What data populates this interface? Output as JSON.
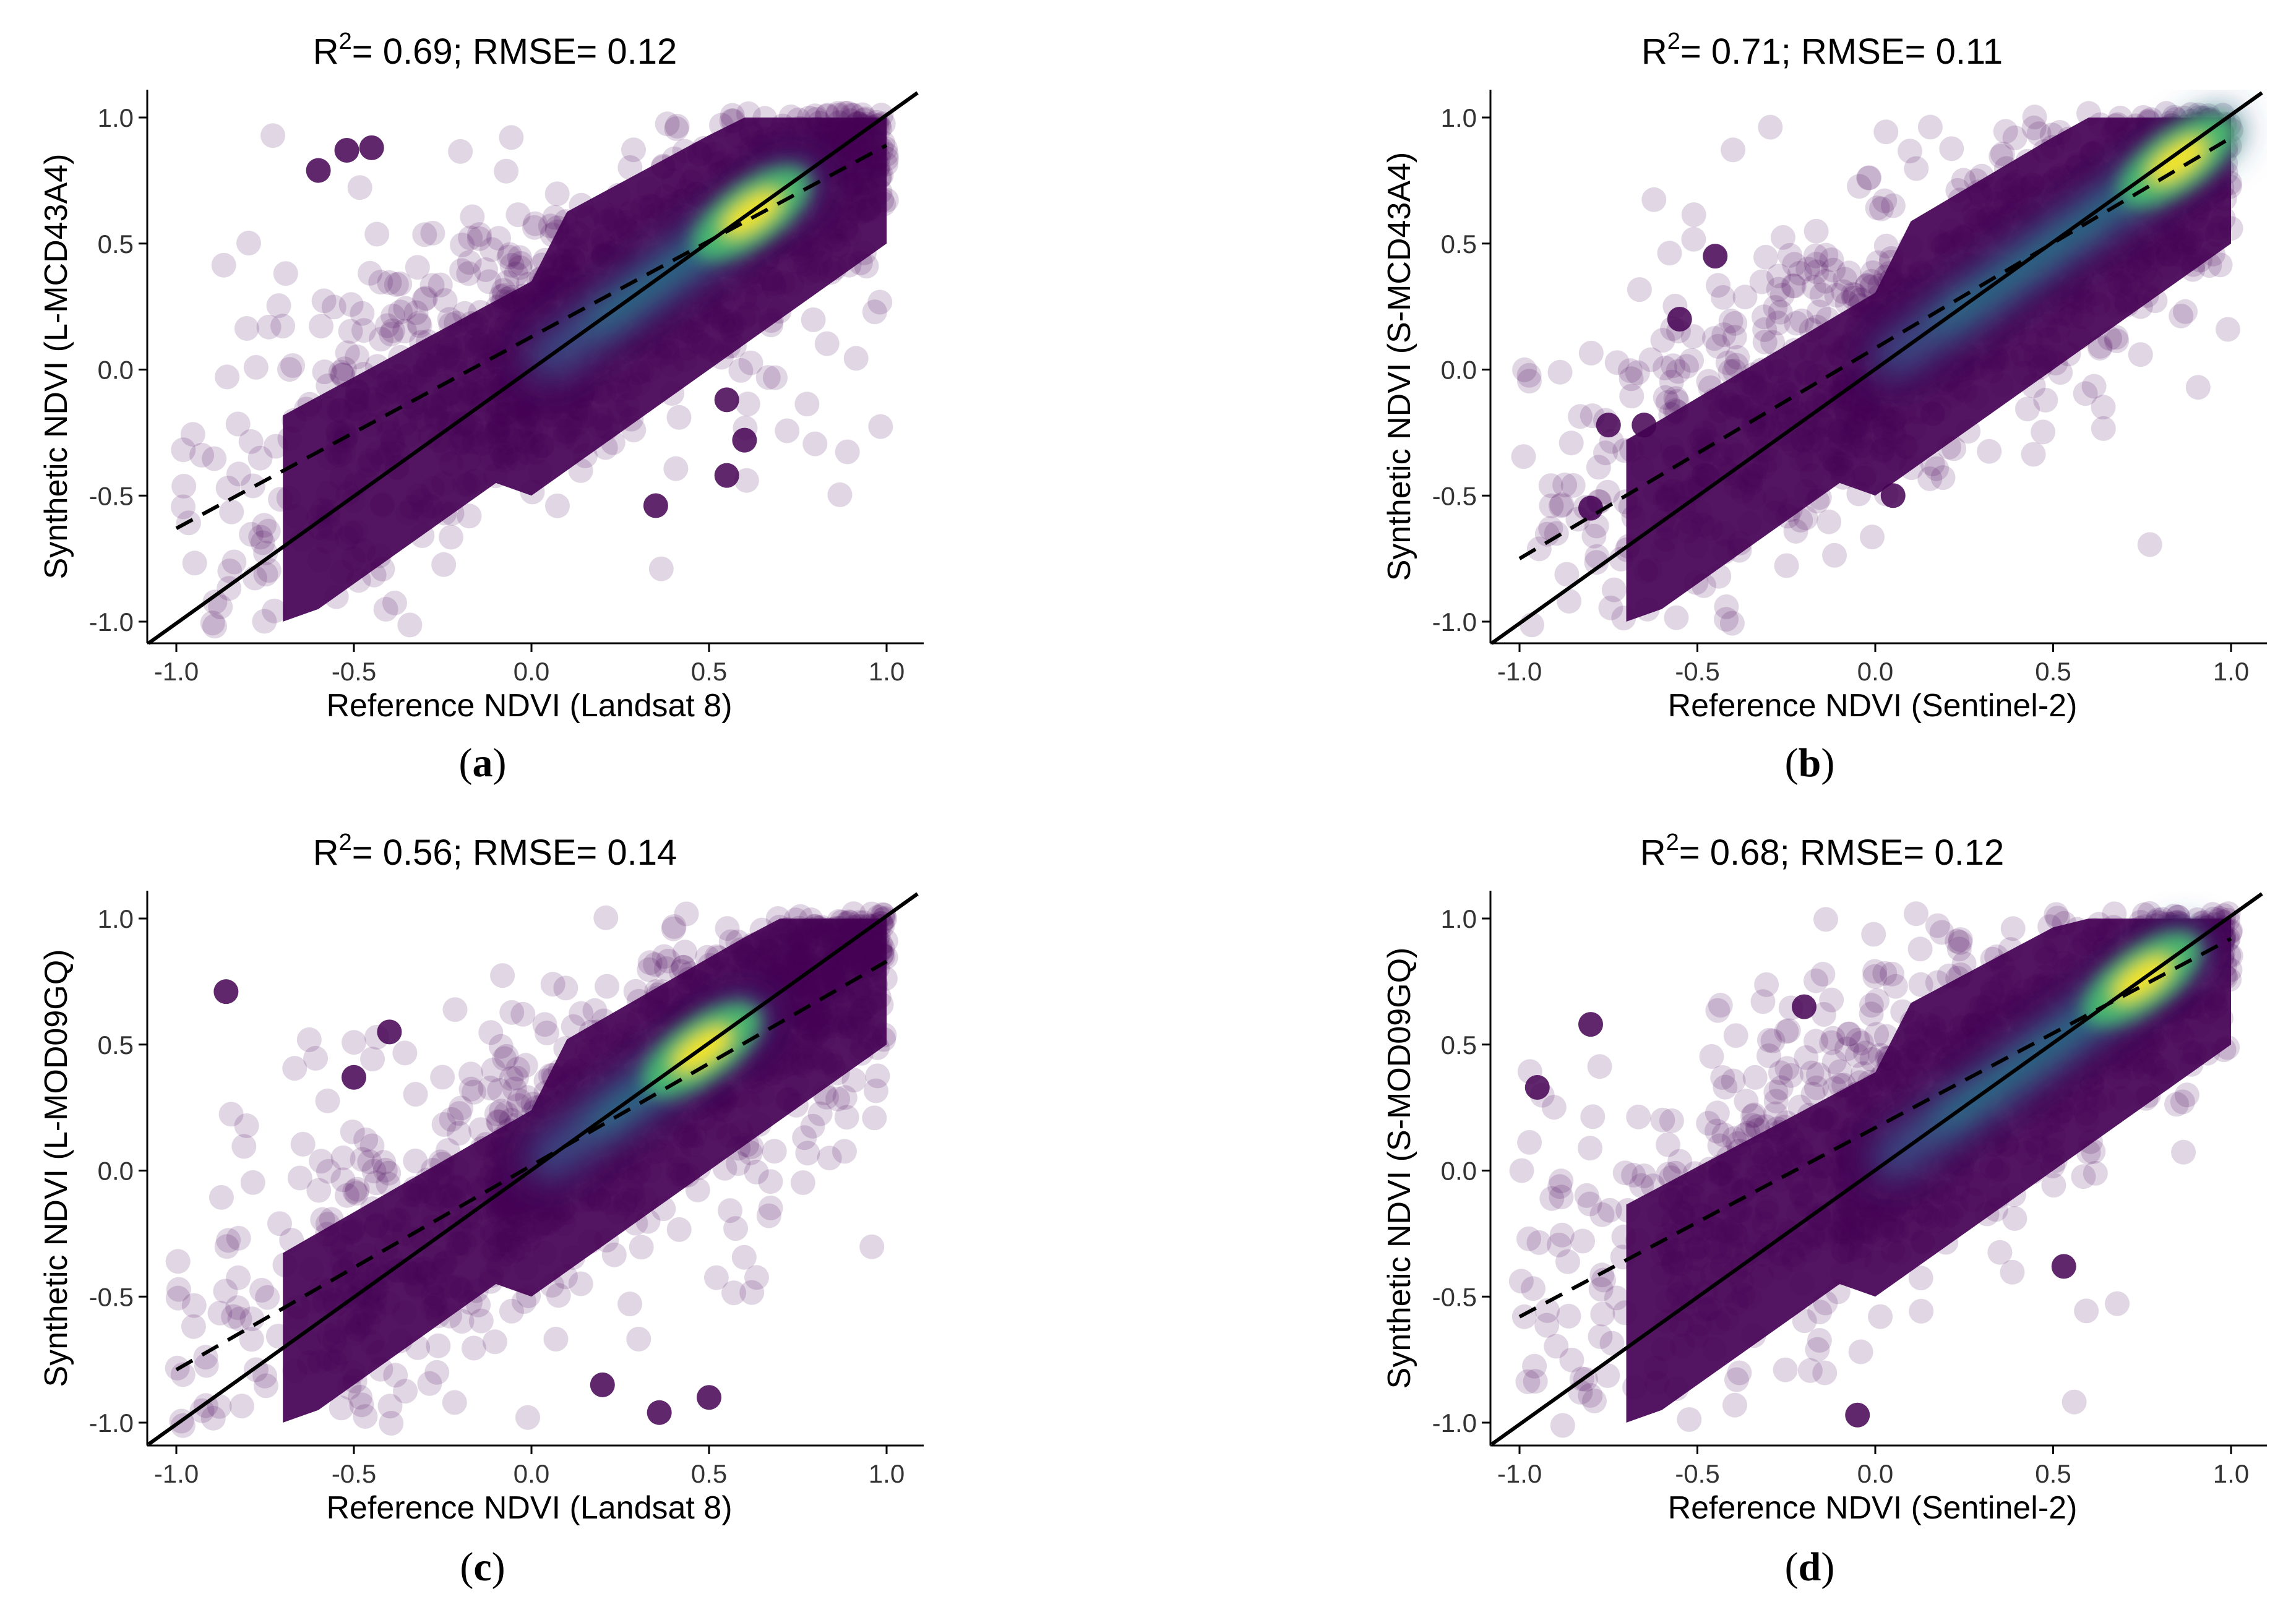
{
  "figure": {
    "panels": [
      {
        "id": "a",
        "title_r2": "0.69",
        "title_rmse": "0.12",
        "caption_letter": "a",
        "xlabel": "Reference NDVI (Landsat 8)",
        "ylabel": "Synthetic NDVI (L-MCD43A4)"
      },
      {
        "id": "b",
        "title_r2": "0.71",
        "title_rmse": "0.11",
        "caption_letter": "b",
        "xlabel": "Reference NDVI (Sentinel-2)",
        "ylabel": "Synthetic NDVI (S-MCD43A4)"
      },
      {
        "id": "c",
        "title_r2": "0.56",
        "title_rmse": "0.14",
        "caption_letter": "c",
        "xlabel": "Reference NDVI (Landsat 8)",
        "ylabel": "Synthetic NDVI (L-MOD09GQ)"
      },
      {
        "id": "d",
        "title_r2": "0.68",
        "title_rmse": "0.12",
        "caption_letter": "d",
        "xlabel": "Reference NDVI (Sentinel-2)",
        "ylabel": "Synthetic NDVI (S-MOD09GQ)"
      }
    ]
  },
  "chart_data": [
    {
      "type": "scatter",
      "panel": "a",
      "title": "R2= 0.69; RMSE= 0.12",
      "xlabel": "Reference NDVI (Landsat 8)",
      "ylabel": "Synthetic NDVI (L-MCD43A4)",
      "xlim": [
        -1.0,
        1.0
      ],
      "ylim": [
        -1.0,
        1.0
      ],
      "xticks": [
        "-1.0",
        "-0.5",
        "0.0",
        "0.5",
        "1.0"
      ],
      "yticks": [
        "-1.0",
        "-0.5",
        "0.0",
        "0.5",
        "1.0"
      ],
      "one_to_one_line": [
        [
          -1.0,
          -1.0
        ],
        [
          1.0,
          1.0
        ]
      ],
      "regression_line": [
        [
          -1.0,
          -0.63
        ],
        [
          1.0,
          0.89
        ]
      ],
      "density_peak": [
        0.62,
        0.62
      ],
      "outliers": [
        [
          -0.6,
          0.79
        ],
        [
          -0.52,
          0.87
        ],
        [
          -0.45,
          0.88
        ],
        [
          0.35,
          -0.54
        ],
        [
          0.55,
          -0.12
        ],
        [
          0.6,
          -0.28
        ],
        [
          0.55,
          -0.42
        ]
      ],
      "r2": 0.69,
      "rmse": 0.12
    },
    {
      "type": "scatter",
      "panel": "b",
      "title": "R2= 0.71; RMSE= 0.11",
      "xlabel": "Reference NDVI (Sentinel-2)",
      "ylabel": "Synthetic NDVI (S-MCD43A4)",
      "xlim": [
        -1.0,
        1.0
      ],
      "ylim": [
        -1.0,
        1.0
      ],
      "xticks": [
        "-1.0",
        "-0.5",
        "0.0",
        "0.5",
        "1.0"
      ],
      "yticks": [
        "-1.0",
        "-0.5",
        "0.0",
        "0.5",
        "1.0"
      ],
      "one_to_one_line": [
        [
          -1.0,
          -1.0
        ],
        [
          1.0,
          1.0
        ]
      ],
      "regression_line": [
        [
          -1.0,
          -0.75
        ],
        [
          1.0,
          0.92
        ]
      ],
      "density_peak": [
        0.85,
        0.83
      ],
      "outliers": [
        [
          -0.8,
          -0.55
        ],
        [
          -0.75,
          -0.22
        ],
        [
          -0.65,
          -0.22
        ],
        [
          -0.55,
          0.2
        ],
        [
          -0.45,
          0.45
        ],
        [
          0.05,
          -0.5
        ]
      ],
      "r2": 0.71,
      "rmse": 0.11
    },
    {
      "type": "scatter",
      "panel": "c",
      "title": "R2= 0.56; RMSE= 0.14",
      "xlabel": "Reference NDVI (Landsat 8)",
      "ylabel": "Synthetic NDVI (L-MOD09GQ)",
      "xlim": [
        -1.0,
        1.0
      ],
      "ylim": [
        -1.0,
        1.0
      ],
      "xticks": [
        "-1.0",
        "-0.5",
        "0.0",
        "0.5",
        "1.0"
      ],
      "yticks": [
        "-1.0",
        "-0.5",
        "0.0",
        "0.5",
        "1.0"
      ],
      "one_to_one_line": [
        [
          -1.0,
          -1.0
        ],
        [
          1.0,
          1.0
        ]
      ],
      "regression_line": [
        [
          -1.0,
          -0.79
        ],
        [
          1.0,
          0.83
        ]
      ],
      "density_peak": [
        0.48,
        0.48
      ],
      "outliers": [
        [
          -0.86,
          0.71
        ],
        [
          -0.5,
          0.37
        ],
        [
          -0.4,
          0.55
        ],
        [
          0.36,
          -0.96
        ],
        [
          0.2,
          -0.85
        ],
        [
          0.5,
          -0.9
        ]
      ],
      "r2": 0.56,
      "rmse": 0.14
    },
    {
      "type": "scatter",
      "panel": "d",
      "title": "R2= 0.68; RMSE= 0.12",
      "xlabel": "Reference NDVI (Sentinel-2)",
      "ylabel": "Synthetic NDVI (S-MOD09GQ)",
      "xlim": [
        -1.0,
        1.0
      ],
      "ylim": [
        -1.0,
        1.0
      ],
      "xticks": [
        "-1.0",
        "-0.5",
        "0.0",
        "0.5",
        "1.0"
      ],
      "yticks": [
        "-1.0",
        "-0.5",
        "0.0",
        "0.5",
        "1.0"
      ],
      "one_to_one_line": [
        [
          -1.0,
          -1.0
        ],
        [
          1.0,
          1.0
        ]
      ],
      "regression_line": [
        [
          -1.0,
          -0.58
        ],
        [
          1.0,
          0.92
        ]
      ],
      "density_peak": [
        0.75,
        0.76
      ],
      "outliers": [
        [
          0.53,
          -0.38
        ],
        [
          -0.2,
          0.65
        ],
        [
          -0.05,
          -0.97
        ],
        [
          -0.8,
          0.58
        ],
        [
          -0.95,
          0.33
        ]
      ],
      "r2": 0.68,
      "rmse": 0.12
    }
  ],
  "colors": {
    "viridis": [
      "#440154",
      "#46327e",
      "#365c8d",
      "#277f8e",
      "#1fa187",
      "#4ac16d",
      "#a0da39",
      "#fde725"
    ],
    "point": "#440154",
    "axis": "#000000"
  }
}
